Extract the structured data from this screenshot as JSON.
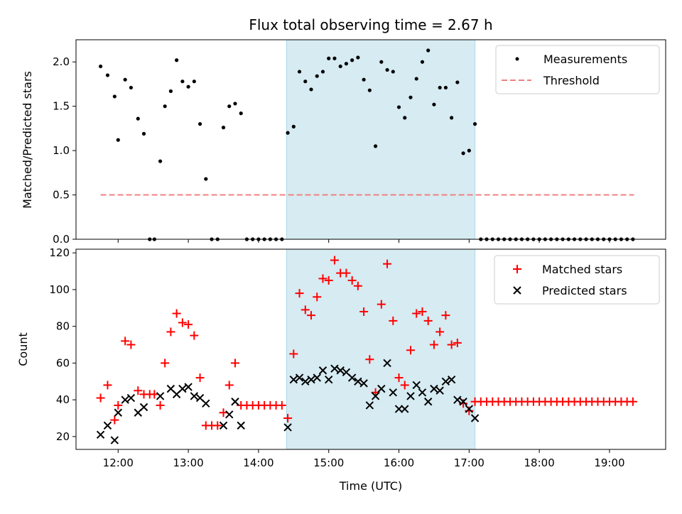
{
  "title": "Flux total observing time = 2.67 h",
  "colors": {
    "measurement": "#000000",
    "threshold": "#f08080",
    "matched": "#ff0000",
    "predicted": "#000000",
    "shade": "#add8e6"
  },
  "chart_data": [
    {
      "type": "scatter",
      "panel": "top",
      "ylabel": "Matched/Predicted stars",
      "xlabel": "",
      "ylim": [
        0,
        2.25
      ],
      "xlim": [
        "11:24",
        "19:48"
      ],
      "yticks": [
        "0.0",
        "0.5",
        "1.0",
        "1.5",
        "2.0"
      ],
      "shaded_interval": [
        "14:24",
        "17:05"
      ],
      "legend": {
        "position": "top-right",
        "entries": [
          "Measurements",
          "Threshold"
        ]
      },
      "threshold": {
        "name": "Threshold",
        "value": 0.5,
        "x_range": [
          "11:45",
          "19:21"
        ],
        "style": "dashed"
      },
      "series": [
        {
          "name": "Measurements",
          "marker": "dot",
          "points": [
            [
              "11:45",
              1.95
            ],
            [
              "11:51",
              1.85
            ],
            [
              "11:57",
              1.61
            ],
            [
              "12:00",
              1.12
            ],
            [
              "12:06",
              1.8
            ],
            [
              "12:11",
              1.71
            ],
            [
              "12:17",
              1.36
            ],
            [
              "12:22",
              1.19
            ],
            [
              "12:27",
              0
            ],
            [
              "12:31",
              0
            ],
            [
              "12:36",
              0.88
            ],
            [
              "12:40",
              1.5
            ],
            [
              "12:45",
              1.67
            ],
            [
              "12:50",
              2.02
            ],
            [
              "12:55",
              1.78
            ],
            [
              "13:00",
              1.72
            ],
            [
              "13:05",
              1.78
            ],
            [
              "13:10",
              1.3
            ],
            [
              "13:15",
              0.68
            ],
            [
              "13:20",
              0
            ],
            [
              "13:25",
              0
            ],
            [
              "13:30",
              1.26
            ],
            [
              "13:35",
              1.5
            ],
            [
              "13:40",
              1.53
            ],
            [
              "13:45",
              1.42
            ],
            [
              "13:50",
              0
            ],
            [
              "13:55",
              0
            ],
            [
              "14:00",
              0
            ],
            [
              "14:05",
              0
            ],
            [
              "14:10",
              0
            ],
            [
              "14:15",
              0
            ],
            [
              "14:20",
              0
            ],
            [
              "14:25",
              1.2
            ],
            [
              "14:30",
              1.27
            ],
            [
              "14:35",
              1.89
            ],
            [
              "14:40",
              1.78
            ],
            [
              "14:45",
              1.69
            ],
            [
              "14:50",
              1.84
            ],
            [
              "14:55",
              1.89
            ],
            [
              "15:00",
              2.04
            ],
            [
              "15:05",
              2.04
            ],
            [
              "15:10",
              1.95
            ],
            [
              "15:15",
              1.98
            ],
            [
              "15:20",
              2.02
            ],
            [
              "15:25",
              2.05
            ],
            [
              "15:30",
              1.8
            ],
            [
              "15:35",
              1.68
            ],
            [
              "15:40",
              1.05
            ],
            [
              "15:45",
              2.0
            ],
            [
              "15:50",
              1.91
            ],
            [
              "15:55",
              1.89
            ],
            [
              "16:00",
              1.49
            ],
            [
              "16:05",
              1.37
            ],
            [
              "16:10",
              1.6
            ],
            [
              "16:15",
              1.81
            ],
            [
              "16:20",
              2.0
            ],
            [
              "16:25",
              2.13
            ],
            [
              "16:30",
              1.52
            ],
            [
              "16:35",
              1.71
            ],
            [
              "16:40",
              1.71
            ],
            [
              "16:45",
              1.37
            ],
            [
              "16:50",
              1.77
            ],
            [
              "16:55",
              0.97
            ],
            [
              "17:00",
              1.0
            ],
            [
              "17:05",
              1.3
            ],
            [
              "17:10",
              0
            ],
            [
              "17:15",
              0
            ],
            [
              "17:20",
              0
            ],
            [
              "17:25",
              0
            ],
            [
              "17:30",
              0
            ],
            [
              "17:35",
              0
            ],
            [
              "17:40",
              0
            ],
            [
              "17:45",
              0
            ],
            [
              "17:50",
              0
            ],
            [
              "17:55",
              0
            ],
            [
              "18:00",
              0
            ],
            [
              "18:05",
              0
            ],
            [
              "18:10",
              0
            ],
            [
              "18:15",
              0
            ],
            [
              "18:20",
              0
            ],
            [
              "18:25",
              0
            ],
            [
              "18:30",
              0
            ],
            [
              "18:35",
              0
            ],
            [
              "18:40",
              0
            ],
            [
              "18:45",
              0
            ],
            [
              "18:50",
              0
            ],
            [
              "18:55",
              0
            ],
            [
              "19:00",
              0
            ],
            [
              "19:05",
              0
            ],
            [
              "19:10",
              0
            ],
            [
              "19:15",
              0
            ],
            [
              "19:20",
              0
            ]
          ]
        }
      ]
    },
    {
      "type": "scatter",
      "panel": "bottom",
      "ylabel": "Count",
      "xlabel": "Time (UTC)",
      "ylim": [
        13,
        122
      ],
      "xlim": [
        "11:24",
        "19:48"
      ],
      "yticks": [
        "20",
        "40",
        "60",
        "80",
        "100",
        "120"
      ],
      "xticks": [
        "12:00",
        "13:00",
        "14:00",
        "15:00",
        "16:00",
        "17:00",
        "18:00",
        "19:00"
      ],
      "shaded_interval": [
        "14:24",
        "17:05"
      ],
      "legend": {
        "position": "top-right",
        "entries": [
          "Matched stars",
          "Predicted stars"
        ]
      },
      "series": [
        {
          "name": "Matched stars",
          "marker": "plus",
          "points": [
            [
              "11:45",
              41
            ],
            [
              "11:51",
              48
            ],
            [
              "11:57",
              29
            ],
            [
              "12:00",
              37
            ],
            [
              "12:06",
              72
            ],
            [
              "12:11",
              70
            ],
            [
              "12:17",
              45
            ],
            [
              "12:22",
              43
            ],
            [
              "12:27",
              43
            ],
            [
              "12:31",
              43
            ],
            [
              "12:36",
              37
            ],
            [
              "12:40",
              60
            ],
            [
              "12:45",
              77
            ],
            [
              "12:50",
              87
            ],
            [
              "12:55",
              82
            ],
            [
              "13:00",
              81
            ],
            [
              "13:05",
              75
            ],
            [
              "13:10",
              52
            ],
            [
              "13:15",
              26
            ],
            [
              "13:20",
              26
            ],
            [
              "13:25",
              26
            ],
            [
              "13:30",
              33
            ],
            [
              "13:35",
              48
            ],
            [
              "13:40",
              60
            ],
            [
              "13:45",
              37
            ],
            [
              "13:50",
              37
            ],
            [
              "13:55",
              37
            ],
            [
              "14:00",
              37
            ],
            [
              "14:05",
              37
            ],
            [
              "14:10",
              37
            ],
            [
              "14:15",
              37
            ],
            [
              "14:20",
              37
            ],
            [
              "14:25",
              30
            ],
            [
              "14:30",
              65
            ],
            [
              "14:35",
              98
            ],
            [
              "14:40",
              89
            ],
            [
              "14:45",
              86
            ],
            [
              "14:50",
              96
            ],
            [
              "14:55",
              106
            ],
            [
              "15:00",
              105
            ],
            [
              "15:05",
              116
            ],
            [
              "15:10",
              109
            ],
            [
              "15:15",
              109
            ],
            [
              "15:20",
              105
            ],
            [
              "15:25",
              102
            ],
            [
              "15:30",
              88
            ],
            [
              "15:35",
              62
            ],
            [
              "15:40",
              44
            ],
            [
              "15:45",
              92
            ],
            [
              "15:50",
              114
            ],
            [
              "15:55",
              83
            ],
            [
              "16:00",
              52
            ],
            [
              "16:05",
              48
            ],
            [
              "16:10",
              67
            ],
            [
              "16:15",
              87
            ],
            [
              "16:20",
              88
            ],
            [
              "16:25",
              83
            ],
            [
              "16:30",
              70
            ],
            [
              "16:35",
              77
            ],
            [
              "16:40",
              86
            ],
            [
              "16:45",
              70
            ],
            [
              "16:50",
              71
            ],
            [
              "16:55",
              38
            ],
            [
              "17:00",
              34
            ],
            [
              "17:05",
              39
            ],
            [
              "17:10",
              39
            ],
            [
              "17:15",
              39
            ],
            [
              "17:20",
              39
            ],
            [
              "17:25",
              39
            ],
            [
              "17:30",
              39
            ],
            [
              "17:35",
              39
            ],
            [
              "17:40",
              39
            ],
            [
              "17:45",
              39
            ],
            [
              "17:50",
              39
            ],
            [
              "17:55",
              39
            ],
            [
              "18:00",
              39
            ],
            [
              "18:05",
              39
            ],
            [
              "18:10",
              39
            ],
            [
              "18:15",
              39
            ],
            [
              "18:20",
              39
            ],
            [
              "18:25",
              39
            ],
            [
              "18:30",
              39
            ],
            [
              "18:35",
              39
            ],
            [
              "18:40",
              39
            ],
            [
              "18:45",
              39
            ],
            [
              "18:50",
              39
            ],
            [
              "18:55",
              39
            ],
            [
              "19:00",
              39
            ],
            [
              "19:05",
              39
            ],
            [
              "19:10",
              39
            ],
            [
              "19:15",
              39
            ],
            [
              "19:20",
              39
            ]
          ]
        },
        {
          "name": "Predicted stars",
          "marker": "x",
          "points": [
            [
              "11:45",
              21
            ],
            [
              "11:51",
              26
            ],
            [
              "11:57",
              18
            ],
            [
              "12:00",
              33
            ],
            [
              "12:06",
              40
            ],
            [
              "12:11",
              41
            ],
            [
              "12:17",
              33
            ],
            [
              "12:22",
              36
            ],
            [
              "12:36",
              42
            ],
            [
              "12:45",
              46
            ],
            [
              "12:50",
              43
            ],
            [
              "12:55",
              46
            ],
            [
              "13:00",
              47
            ],
            [
              "13:05",
              42
            ],
            [
              "13:10",
              41
            ],
            [
              "13:15",
              38
            ],
            [
              "13:30",
              26
            ],
            [
              "13:35",
              32
            ],
            [
              "13:40",
              39
            ],
            [
              "13:45",
              26
            ],
            [
              "14:25",
              25
            ],
            [
              "14:30",
              51
            ],
            [
              "14:35",
              52
            ],
            [
              "14:40",
              50
            ],
            [
              "14:45",
              51
            ],
            [
              "14:50",
              52
            ],
            [
              "14:55",
              56
            ],
            [
              "15:00",
              51
            ],
            [
              "15:05",
              57
            ],
            [
              "15:10",
              56
            ],
            [
              "15:15",
              55
            ],
            [
              "15:20",
              52
            ],
            [
              "15:25",
              50
            ],
            [
              "15:30",
              49
            ],
            [
              "15:35",
              37
            ],
            [
              "15:40",
              42
            ],
            [
              "15:45",
              46
            ],
            [
              "15:50",
              60
            ],
            [
              "15:55",
              44
            ],
            [
              "16:00",
              35
            ],
            [
              "16:05",
              35
            ],
            [
              "16:10",
              42
            ],
            [
              "16:15",
              48
            ],
            [
              "16:20",
              44
            ],
            [
              "16:25",
              39
            ],
            [
              "16:30",
              46
            ],
            [
              "16:35",
              45
            ],
            [
              "16:40",
              50
            ],
            [
              "16:45",
              51
            ],
            [
              "16:50",
              40
            ],
            [
              "16:55",
              39
            ],
            [
              "17:00",
              35
            ],
            [
              "17:05",
              30
            ]
          ]
        }
      ]
    }
  ]
}
